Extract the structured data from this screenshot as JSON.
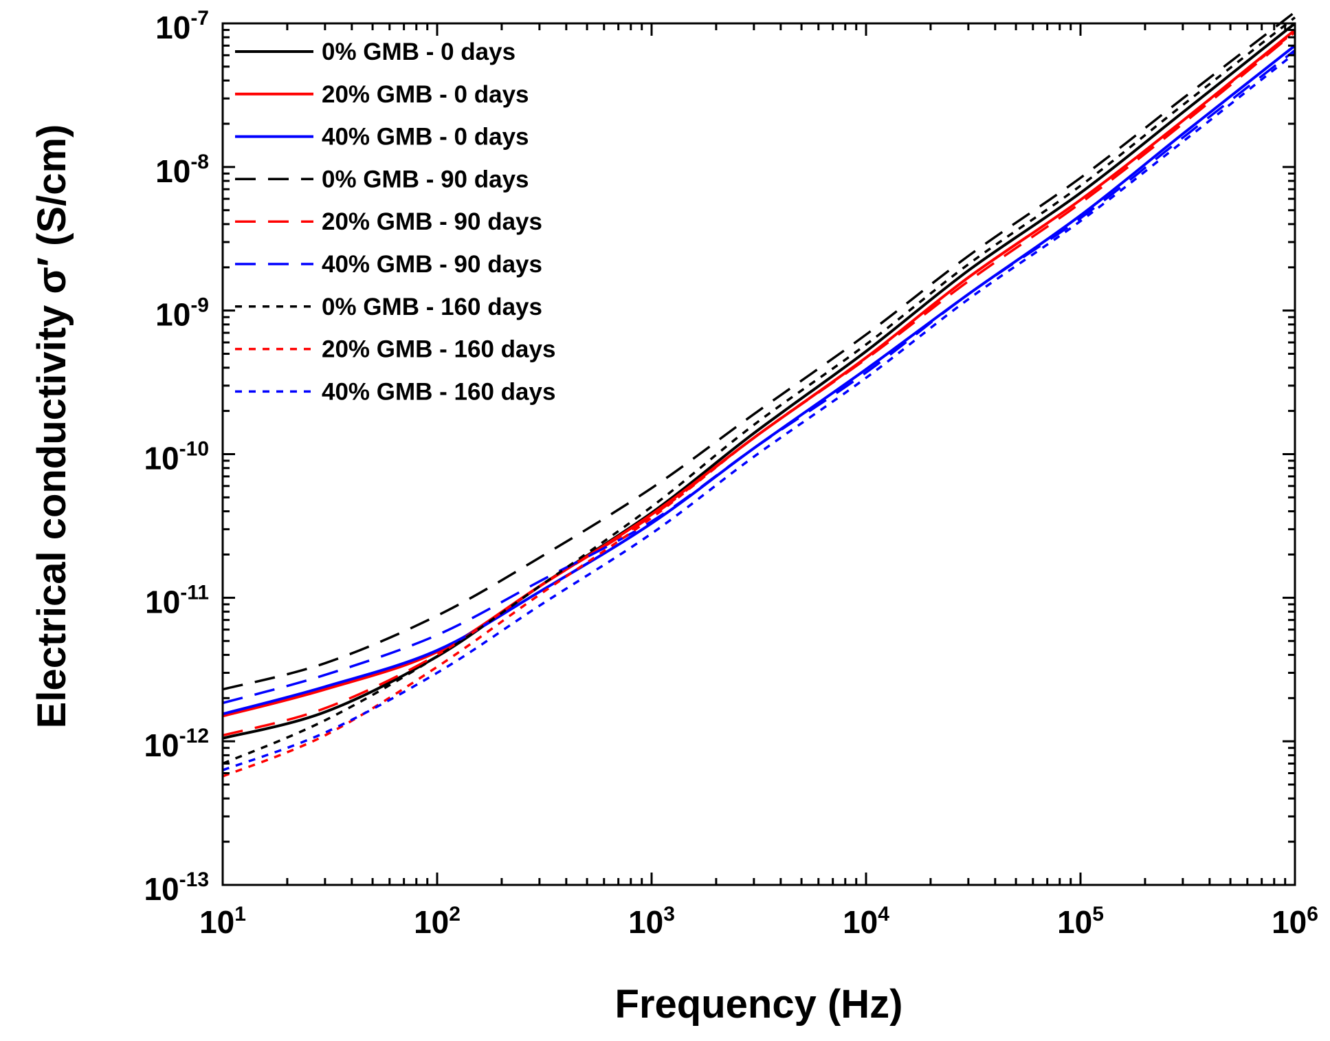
{
  "chart_data": {
    "type": "line",
    "title": "",
    "xlabel": "Frequency (Hz)",
    "ylabel": "Electrical conductivity σ′ (S/cm)",
    "xscale": "log",
    "yscale": "log",
    "xlim": [
      10,
      1000000
    ],
    "ylim": [
      1e-13,
      1e-07
    ],
    "grid": false,
    "legend_position": "top-left",
    "x_ticks": [
      {
        "value": 10,
        "base": "10",
        "exp": "1"
      },
      {
        "value": 100,
        "base": "10",
        "exp": "2"
      },
      {
        "value": 1000,
        "base": "10",
        "exp": "3"
      },
      {
        "value": 10000,
        "base": "10",
        "exp": "4"
      },
      {
        "value": 100000,
        "base": "10",
        "exp": "5"
      },
      {
        "value": 1000000,
        "base": "10",
        "exp": "6"
      }
    ],
    "y_ticks": [
      {
        "value": 1e-13,
        "base": "10",
        "exp": "-13"
      },
      {
        "value": 1e-12,
        "base": "10",
        "exp": "-12"
      },
      {
        "value": 1e-11,
        "base": "10",
        "exp": "-11"
      },
      {
        "value": 1e-10,
        "base": "10",
        "exp": "-10"
      },
      {
        "value": 1e-09,
        "base": "10",
        "exp": "-9"
      },
      {
        "value": 1e-08,
        "base": "10",
        "exp": "-8"
      },
      {
        "value": 1e-07,
        "base": "10",
        "exp": "-7"
      }
    ],
    "series": [
      {
        "name": "0% GMB - 0 days",
        "color": "#000000",
        "dash": "solid",
        "x": [
          10,
          30,
          100,
          300,
          1000,
          3000,
          10000,
          30000,
          100000,
          300000,
          1000000
        ],
        "y": [
          1.05e-12,
          1.6e-12,
          3.9e-12,
          1.2e-11,
          3.9e-11,
          1.4e-10,
          5.2e-10,
          1.9e-09,
          6.6e-09,
          2.4e-08,
          1e-07
        ]
      },
      {
        "name": "20% GMB - 0 days",
        "color": "#ff0000",
        "dash": "solid",
        "x": [
          10,
          30,
          100,
          300,
          1000,
          3000,
          10000,
          30000,
          100000,
          300000,
          1000000
        ],
        "y": [
          1.5e-12,
          2.3e-12,
          4.2e-12,
          1.2e-11,
          3.8e-11,
          1.3e-10,
          4.7e-10,
          1.7e-09,
          5.9e-09,
          2.1e-08,
          9e-08
        ]
      },
      {
        "name": "40% GMB - 0 days",
        "color": "#0000ff",
        "dash": "solid",
        "x": [
          10,
          30,
          100,
          300,
          1000,
          3000,
          10000,
          30000,
          100000,
          300000,
          1000000
        ],
        "y": [
          1.55e-12,
          2.4e-12,
          4.3e-12,
          1.1e-11,
          3.3e-11,
          1.1e-10,
          3.9e-10,
          1.3e-09,
          4.6e-09,
          1.7e-08,
          7e-08
        ]
      },
      {
        "name": "0% GMB - 90 days",
        "color": "#000000",
        "dash": "long",
        "x": [
          10,
          30,
          100,
          300,
          1000,
          3000,
          10000,
          30000,
          100000,
          300000,
          1000000
        ],
        "y": [
          2.3e-12,
          3.5e-12,
          7.5e-12,
          1.9e-11,
          5.8e-11,
          1.9e-10,
          6.8e-10,
          2.4e-09,
          8.4e-09,
          3e-08,
          1.2e-07
        ]
      },
      {
        "name": "20% GMB - 90 days",
        "color": "#ff0000",
        "dash": "long",
        "x": [
          10,
          30,
          100,
          300,
          1000,
          3000,
          10000,
          30000,
          100000,
          300000,
          1000000
        ],
        "y": [
          1.1e-12,
          1.7e-12,
          4e-12,
          1.2e-11,
          3.7e-11,
          1.3e-10,
          4.6e-10,
          1.6e-09,
          5.6e-09,
          2e-08,
          8.7e-08
        ]
      },
      {
        "name": "40% GMB - 90 days",
        "color": "#0000ff",
        "dash": "long",
        "x": [
          10,
          30,
          100,
          300,
          1000,
          3000,
          10000,
          30000,
          100000,
          300000,
          1000000
        ],
        "y": [
          1.85e-12,
          2.9e-12,
          5.5e-12,
          1.3e-11,
          3.4e-11,
          1.1e-10,
          3.7e-10,
          1.3e-09,
          4.4e-09,
          1.6e-08,
          6.5e-08
        ]
      },
      {
        "name": "0% GMB - 160 days",
        "color": "#000000",
        "dash": "short",
        "x": [
          10,
          30,
          100,
          300,
          1000,
          3000,
          10000,
          30000,
          100000,
          300000,
          1000000
        ],
        "y": [
          7e-13,
          1.4e-12,
          3.9e-12,
          1.2e-11,
          4.3e-11,
          1.6e-10,
          5.8e-10,
          2.1e-09,
          7.4e-09,
          2.7e-08,
          1.1e-07
        ]
      },
      {
        "name": "20% GMB - 160 days",
        "color": "#ff0000",
        "dash": "short",
        "x": [
          10,
          30,
          100,
          300,
          1000,
          3000,
          10000,
          30000,
          100000,
          300000,
          1000000
        ],
        "y": [
          5.7e-13,
          1.1e-12,
          3.3e-12,
          1.05e-11,
          3.6e-11,
          1.3e-10,
          4.7e-10,
          1.7e-09,
          5.9e-09,
          2.1e-08,
          8.8e-08
        ]
      },
      {
        "name": "40% GMB - 160 days",
        "color": "#0000ff",
        "dash": "short",
        "x": [
          10,
          30,
          100,
          300,
          1000,
          3000,
          10000,
          30000,
          100000,
          300000,
          1000000
        ],
        "y": [
          6.3e-13,
          1.15e-12,
          3e-12,
          8.8e-12,
          2.8e-11,
          9.6e-11,
          3.4e-10,
          1.2e-09,
          4.2e-09,
          1.5e-08,
          6.2e-08
        ]
      }
    ]
  }
}
